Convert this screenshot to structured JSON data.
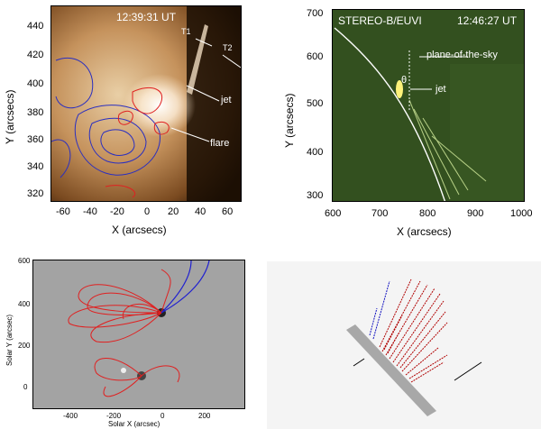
{
  "panel_a": {
    "time": "12:39:31 UT",
    "label_t1": "T1",
    "label_t2": "T2",
    "label_jet": "jet",
    "label_flare": "flare",
    "xlabel": "X (arcsecs)",
    "ylabel": "Y (arcsecs)",
    "xticks": [
      "-60",
      "-40",
      "-20",
      "0",
      "20",
      "40",
      "60"
    ],
    "yticks": [
      "440",
      "420",
      "400",
      "380",
      "360",
      "340",
      "320"
    ],
    "colors": {
      "contour_blue": "#2a2fc0",
      "contour_red": "#e02020",
      "bg_dark": "#1a0e04",
      "bg_light": "#e8c9a0"
    }
  },
  "panel_b": {
    "instrument": "STEREO-B/EUVI",
    "time": "12:46:27 UT",
    "label_pos": "plane-of-the-sky",
    "label_theta": "θ",
    "label_jet": "jet",
    "xlabel": "X (arcsecs)",
    "ylabel": "Y (arcsecs)",
    "xticks": [
      "600",
      "700",
      "800",
      "900",
      "1000"
    ],
    "yticks": [
      "700",
      "600",
      "500",
      "400",
      "300"
    ],
    "colors": {
      "bg": "#2f4a20",
      "limb": "#ffffff"
    }
  },
  "panel_c": {
    "xlabel": "Solar X (arcsec)",
    "ylabel": "Solar Y (arcsec)",
    "xticks": [
      "-400",
      "-200",
      "0",
      "200"
    ],
    "yticks": [
      "600",
      "400",
      "200",
      "0"
    ],
    "colors": {
      "field_red": "#e02020",
      "field_blue": "#2020d0",
      "bg": "#9a9a9a"
    }
  },
  "panel_d": {
    "colors": {
      "bar": "#a8a8a8",
      "lines_red": "#b00000",
      "lines_blue": "#1010c0"
    }
  }
}
